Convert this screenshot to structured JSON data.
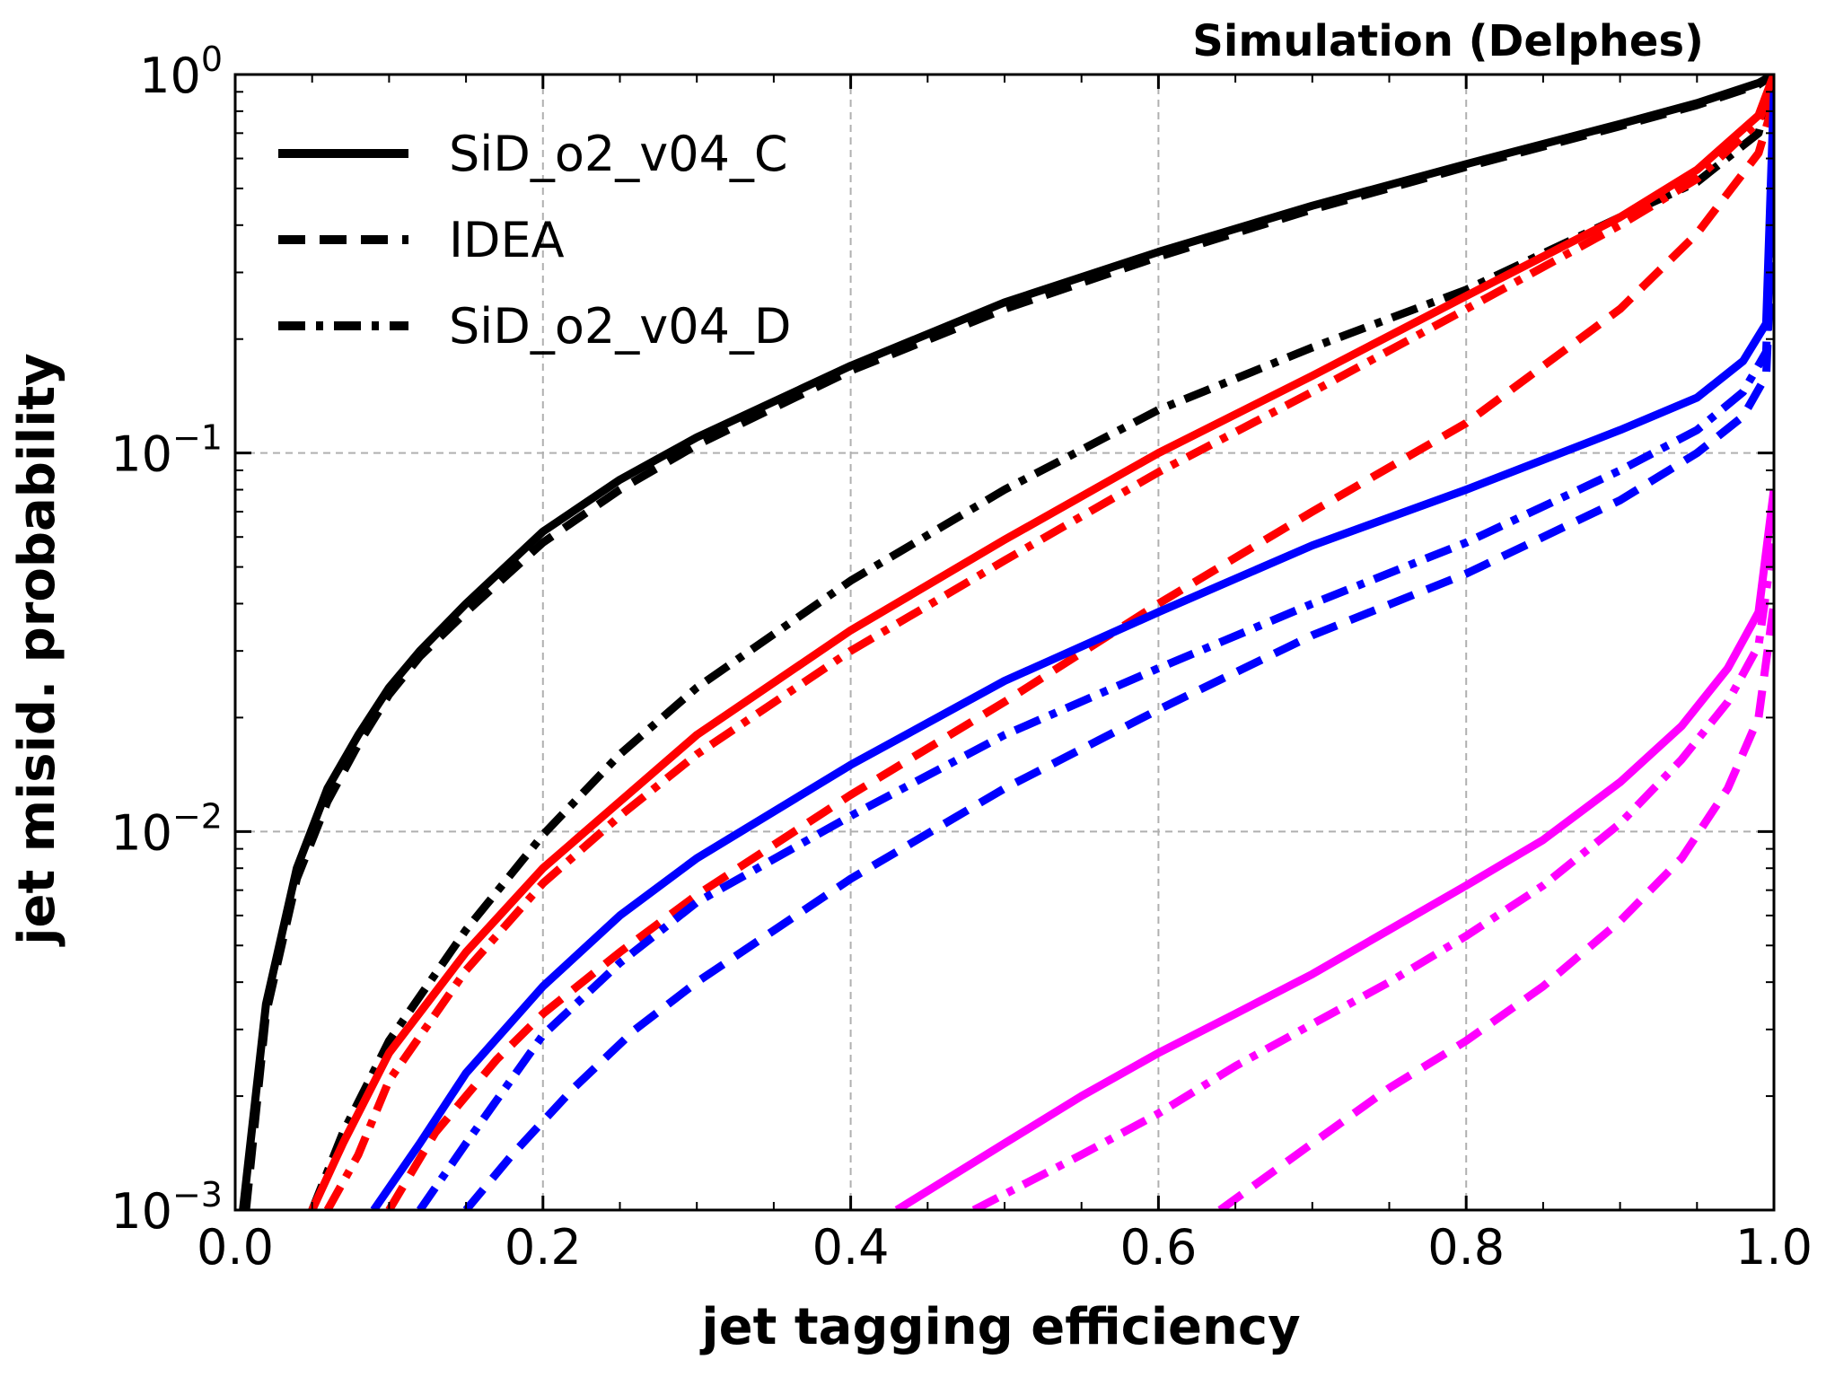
{
  "chart_data": {
    "type": "line",
    "header": "Simulation (Delphes)",
    "xlabel": "jet tagging efficiency",
    "ylabel": "jet misid. probability",
    "xlim": [
      0.0,
      1.0
    ],
    "ylim": [
      0.001,
      1.0
    ],
    "yscale": "log",
    "grid": true,
    "legend_position": "top-left",
    "x_ticks": [
      "0.0",
      "0.2",
      "0.4",
      "0.6",
      "0.8",
      "1.0"
    ],
    "y_ticks": [
      {
        "base": "10",
        "exp": "0"
      },
      {
        "base": "10",
        "exp": "−1"
      },
      {
        "base": "10",
        "exp": "−2"
      },
      {
        "base": "10",
        "exp": "−3"
      }
    ],
    "legend": [
      {
        "label": "SiD_o2_v04_C",
        "style": "solid"
      },
      {
        "label": "IDEA",
        "style": "dashed"
      },
      {
        "label": "SiD_o2_v04_D",
        "style": "dashdot"
      }
    ],
    "colors": {
      "black": "#000000",
      "red": "#ff0000",
      "blue": "#0000ff",
      "magenta": "#ff00ff"
    },
    "series": [
      {
        "color": "black",
        "style": "solid",
        "x": [
          0.005,
          0.02,
          0.04,
          0.06,
          0.08,
          0.1,
          0.12,
          0.15,
          0.2,
          0.25,
          0.3,
          0.4,
          0.5,
          0.6,
          0.7,
          0.8,
          0.9,
          0.95,
          0.99,
          1.0
        ],
        "y": [
          0.001,
          0.0035,
          0.008,
          0.013,
          0.018,
          0.024,
          0.03,
          0.04,
          0.062,
          0.085,
          0.11,
          0.17,
          0.25,
          0.34,
          0.45,
          0.58,
          0.74,
          0.84,
          0.95,
          1.0
        ]
      },
      {
        "color": "black",
        "style": "dashed",
        "x": [
          0.007,
          0.02,
          0.04,
          0.06,
          0.08,
          0.1,
          0.12,
          0.15,
          0.2,
          0.25,
          0.3,
          0.4,
          0.5,
          0.6,
          0.7,
          0.8,
          0.9,
          0.95,
          0.99,
          1.0
        ],
        "y": [
          0.001,
          0.0033,
          0.0075,
          0.012,
          0.017,
          0.023,
          0.029,
          0.038,
          0.058,
          0.08,
          0.105,
          0.165,
          0.24,
          0.33,
          0.44,
          0.57,
          0.73,
          0.83,
          0.94,
          1.0
        ]
      },
      {
        "color": "black",
        "style": "dashdot",
        "x": [
          0.05,
          0.07,
          0.1,
          0.15,
          0.2,
          0.25,
          0.3,
          0.4,
          0.5,
          0.6,
          0.7,
          0.8,
          0.9,
          0.95,
          0.99,
          1.0
        ],
        "y": [
          0.001,
          0.0016,
          0.0028,
          0.0055,
          0.0098,
          0.016,
          0.024,
          0.046,
          0.08,
          0.13,
          0.19,
          0.27,
          0.42,
          0.52,
          0.7,
          1.0
        ]
      },
      {
        "color": "red",
        "style": "solid",
        "x": [
          0.05,
          0.07,
          0.1,
          0.15,
          0.2,
          0.25,
          0.3,
          0.4,
          0.5,
          0.6,
          0.7,
          0.8,
          0.9,
          0.95,
          0.99,
          1.0
        ],
        "y": [
          0.001,
          0.0015,
          0.0026,
          0.0048,
          0.008,
          0.012,
          0.018,
          0.034,
          0.059,
          0.1,
          0.16,
          0.26,
          0.42,
          0.56,
          0.78,
          1.0
        ]
      },
      {
        "color": "red",
        "style": "dashed",
        "x": [
          0.1,
          0.13,
          0.17,
          0.2,
          0.25,
          0.3,
          0.4,
          0.5,
          0.6,
          0.7,
          0.8,
          0.9,
          0.95,
          0.99,
          1.0
        ],
        "y": [
          0.001,
          0.0016,
          0.0025,
          0.0033,
          0.0048,
          0.0068,
          0.0125,
          0.022,
          0.04,
          0.07,
          0.12,
          0.24,
          0.38,
          0.62,
          0.85
        ]
      },
      {
        "color": "red",
        "style": "dashdot",
        "x": [
          0.06,
          0.08,
          0.1,
          0.15,
          0.2,
          0.25,
          0.3,
          0.4,
          0.5,
          0.6,
          0.7,
          0.8,
          0.9,
          0.95,
          0.99,
          1.0
        ],
        "y": [
          0.001,
          0.0014,
          0.0022,
          0.0043,
          0.0073,
          0.011,
          0.016,
          0.03,
          0.052,
          0.089,
          0.145,
          0.24,
          0.4,
          0.53,
          0.75,
          0.95
        ]
      },
      {
        "color": "blue",
        "style": "solid",
        "x": [
          0.09,
          0.12,
          0.15,
          0.2,
          0.25,
          0.3,
          0.4,
          0.5,
          0.6,
          0.7,
          0.8,
          0.9,
          0.95,
          0.98,
          0.995,
          1.0
        ],
        "y": [
          0.001,
          0.0015,
          0.0023,
          0.0039,
          0.006,
          0.0085,
          0.015,
          0.025,
          0.038,
          0.057,
          0.08,
          0.115,
          0.14,
          0.175,
          0.22,
          0.9
        ]
      },
      {
        "color": "blue",
        "style": "dashed",
        "x": [
          0.15,
          0.18,
          0.22,
          0.26,
          0.3,
          0.4,
          0.5,
          0.6,
          0.7,
          0.8,
          0.9,
          0.95,
          0.98,
          0.995,
          1.0
        ],
        "y": [
          0.001,
          0.0014,
          0.0021,
          0.003,
          0.004,
          0.0075,
          0.013,
          0.021,
          0.033,
          0.048,
          0.075,
          0.1,
          0.125,
          0.16,
          0.5
        ]
      },
      {
        "color": "blue",
        "style": "dashdot",
        "x": [
          0.12,
          0.15,
          0.2,
          0.25,
          0.3,
          0.4,
          0.5,
          0.6,
          0.7,
          0.8,
          0.9,
          0.95,
          0.98,
          0.995,
          1.0
        ],
        "y": [
          0.001,
          0.0015,
          0.0029,
          0.0045,
          0.0065,
          0.011,
          0.018,
          0.027,
          0.04,
          0.058,
          0.09,
          0.115,
          0.145,
          0.185,
          0.6
        ]
      },
      {
        "color": "magenta",
        "style": "solid",
        "x": [
          0.43,
          0.5,
          0.55,
          0.6,
          0.65,
          0.7,
          0.75,
          0.8,
          0.85,
          0.9,
          0.94,
          0.97,
          0.99,
          1.0
        ],
        "y": [
          0.001,
          0.0015,
          0.002,
          0.0026,
          0.0033,
          0.0042,
          0.0055,
          0.0072,
          0.0095,
          0.0135,
          0.019,
          0.027,
          0.038,
          0.08
        ]
      },
      {
        "color": "magenta",
        "style": "dashed",
        "x": [
          0.64,
          0.7,
          0.75,
          0.8,
          0.85,
          0.9,
          0.94,
          0.97,
          0.99,
          1.0
        ],
        "y": [
          0.001,
          0.0015,
          0.0021,
          0.0028,
          0.0039,
          0.0058,
          0.0085,
          0.013,
          0.02,
          0.04
        ]
      },
      {
        "color": "magenta",
        "style": "dashdot",
        "x": [
          0.48,
          0.55,
          0.6,
          0.65,
          0.7,
          0.75,
          0.8,
          0.85,
          0.9,
          0.94,
          0.97,
          0.99,
          1.0
        ],
        "y": [
          0.001,
          0.0014,
          0.0018,
          0.0024,
          0.0031,
          0.004,
          0.0053,
          0.0072,
          0.0105,
          0.0155,
          0.022,
          0.031,
          0.06
        ]
      }
    ]
  }
}
